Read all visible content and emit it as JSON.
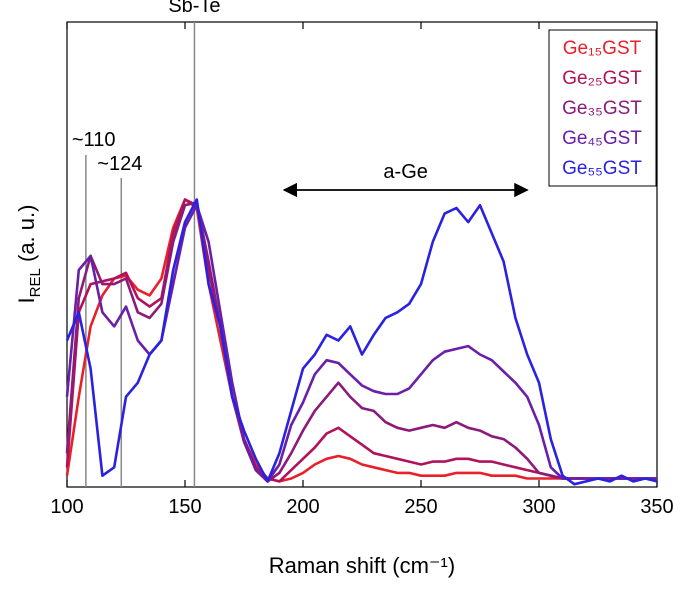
{
  "chart_data": {
    "type": "line",
    "xlabel": "Raman shift (cm⁻¹)",
    "ylabel": {
      "main": "I",
      "sub": "REL",
      "rest": " (a. u.)"
    },
    "x": [
      100,
      105,
      110,
      115,
      120,
      125,
      130,
      135,
      140,
      145,
      150,
      155,
      160,
      165,
      170,
      175,
      180,
      185,
      190,
      195,
      200,
      205,
      210,
      215,
      220,
      225,
      230,
      235,
      240,
      245,
      250,
      255,
      260,
      265,
      270,
      275,
      280,
      285,
      290,
      295,
      300,
      305,
      310,
      315,
      320,
      325,
      330,
      335,
      340,
      345,
      350
    ],
    "xlim": [
      100,
      350
    ],
    "xticks": [
      100,
      150,
      200,
      250,
      300,
      350
    ],
    "ylim": [
      -0.02,
      1.63
    ],
    "legend": "upper right",
    "series": [
      {
        "name": "Ge₁₅GST",
        "color": "#e8202a",
        "values": [
          0.02,
          0.3,
          0.55,
          0.66,
          0.72,
          0.73,
          0.68,
          0.66,
          0.72,
          0.9,
          1.0,
          0.97,
          0.7,
          0.5,
          0.3,
          0.15,
          0.06,
          0.01,
          0.0,
          0.01,
          0.03,
          0.06,
          0.08,
          0.09,
          0.08,
          0.06,
          0.05,
          0.04,
          0.03,
          0.03,
          0.02,
          0.02,
          0.02,
          0.03,
          0.03,
          0.03,
          0.02,
          0.02,
          0.02,
          0.01,
          0.01,
          0.01,
          0.01,
          0.01,
          0.01,
          0.01,
          0.01,
          0.01,
          0.01,
          0.01,
          0.01
        ]
      },
      {
        "name": "Ge₂₅GST",
        "color": "#b0135a",
        "values": [
          0.05,
          0.6,
          0.7,
          0.71,
          0.72,
          0.74,
          0.65,
          0.62,
          0.65,
          0.88,
          1.0,
          0.98,
          0.75,
          0.55,
          0.3,
          0.15,
          0.05,
          0.01,
          0.0,
          0.04,
          0.08,
          0.12,
          0.17,
          0.19,
          0.16,
          0.13,
          0.1,
          0.09,
          0.08,
          0.07,
          0.06,
          0.07,
          0.07,
          0.08,
          0.08,
          0.07,
          0.07,
          0.06,
          0.05,
          0.04,
          0.03,
          0.02,
          0.01,
          0.01,
          0.01,
          0.01,
          0.01,
          0.01,
          0.01,
          0.01,
          0.01
        ]
      },
      {
        "name": "Ge₃₅GST",
        "color": "#8b1a7a",
        "values": [
          0.1,
          0.65,
          0.8,
          0.7,
          0.7,
          0.72,
          0.6,
          0.58,
          0.63,
          0.85,
          0.98,
          0.99,
          0.78,
          0.55,
          0.3,
          0.14,
          0.04,
          0.0,
          0.03,
          0.1,
          0.18,
          0.25,
          0.3,
          0.35,
          0.3,
          0.26,
          0.25,
          0.21,
          0.19,
          0.18,
          0.19,
          0.2,
          0.19,
          0.21,
          0.19,
          0.18,
          0.16,
          0.15,
          0.12,
          0.08,
          0.03,
          0.02,
          0.01,
          0.01,
          0.01,
          0.01,
          0.01,
          0.01,
          0.01,
          0.01,
          0.01
        ]
      },
      {
        "name": "Ge₄₅GST",
        "color": "#6a1fa8",
        "values": [
          0.3,
          0.75,
          0.8,
          0.6,
          0.55,
          0.62,
          0.5,
          0.45,
          0.5,
          0.7,
          0.9,
          0.98,
          0.85,
          0.6,
          0.35,
          0.15,
          0.04,
          0.0,
          0.06,
          0.2,
          0.28,
          0.38,
          0.43,
          0.42,
          0.38,
          0.34,
          0.32,
          0.31,
          0.31,
          0.33,
          0.38,
          0.43,
          0.46,
          0.47,
          0.48,
          0.45,
          0.43,
          0.39,
          0.35,
          0.3,
          0.2,
          0.05,
          0.01,
          0.01,
          0.01,
          0.01,
          0.01,
          0.01,
          0.01,
          0.01,
          0.01
        ]
      },
      {
        "name": "Ge₅₅GST",
        "color": "#2a22e0",
        "values": [
          0.5,
          0.6,
          0.4,
          0.02,
          0.05,
          0.3,
          0.35,
          0.45,
          0.5,
          0.75,
          0.92,
          1.0,
          0.7,
          0.55,
          0.3,
          0.18,
          0.08,
          0.0,
          0.1,
          0.25,
          0.4,
          0.45,
          0.52,
          0.5,
          0.55,
          0.45,
          0.52,
          0.58,
          0.6,
          0.63,
          0.7,
          0.85,
          0.95,
          0.97,
          0.92,
          0.98,
          0.88,
          0.78,
          0.58,
          0.45,
          0.35,
          0.15,
          0.02,
          -0.01,
          0.0,
          0.01,
          0.0,
          0.02,
          0.0,
          0.01,
          0.0
        ]
      }
    ],
    "annotations": [
      {
        "text": "Sb-Te",
        "x": 154
      },
      {
        "text": "~110",
        "x": 108
      },
      {
        "text": "~124",
        "x": 123
      }
    ],
    "arrow": {
      "text": "a-Ge",
      "x": [
        192,
        295
      ]
    }
  }
}
